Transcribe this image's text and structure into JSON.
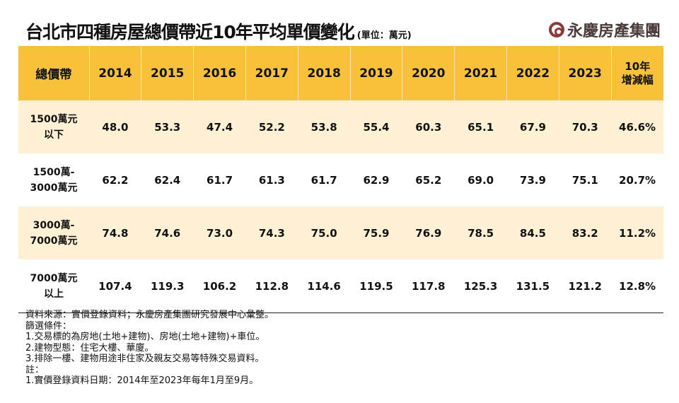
{
  "header": {
    "title": "台北市四種房屋總價帶近10年平均單價變化",
    "unit": "(單位：萬元)",
    "logo": "永慶房產集團"
  },
  "table": {
    "columns": [
      "總價帶",
      "2014",
      "2015",
      "2016",
      "2017",
      "2018",
      "2019",
      "2020",
      "2021",
      "2022",
      "2023",
      "10年\n增減幅"
    ],
    "rows": [
      {
        "band": "1500萬元\n以下",
        "values": [
          "48.0",
          "53.3",
          "47.4",
          "52.2",
          "53.8",
          "55.4",
          "60.3",
          "65.1",
          "67.9",
          "70.3",
          "46.6%"
        ]
      },
      {
        "band": "1500萬-\n3000萬元",
        "values": [
          "62.2",
          "62.4",
          "61.7",
          "61.3",
          "61.7",
          "62.9",
          "65.2",
          "69.0",
          "73.9",
          "75.1",
          "20.7%"
        ]
      },
      {
        "band": "3000萬-\n7000萬元",
        "values": [
          "74.8",
          "74.6",
          "73.0",
          "74.3",
          "75.0",
          "75.9",
          "76.9",
          "78.5",
          "84.5",
          "83.2",
          "11.2%"
        ]
      },
      {
        "band": "7000萬元\n以上",
        "values": [
          "107.4",
          "119.3",
          "106.2",
          "112.8",
          "114.6",
          "119.5",
          "117.8",
          "125.3",
          "131.5",
          "121.2",
          "12.8%"
        ]
      }
    ]
  },
  "notes": [
    "資料來源：實價登錄資料；永慶房產集團研究發展中心彙整。",
    "篩選條件：",
    "1.交易標的為房地(土地+建物)、房地(土地+建物)+車位。",
    "2.建物型態：住宅大樓、華廈。",
    "3.排除一樓、建物用途非住家及親友交易等特殊交易資料。",
    "註：",
    "1.實價登錄資料日期：2014年至2023年每年1月至9月。"
  ],
  "colors": {
    "header_bg": "#f8c13a",
    "alt_row": "#fdf0d3",
    "logo": "#8b3a3a"
  }
}
